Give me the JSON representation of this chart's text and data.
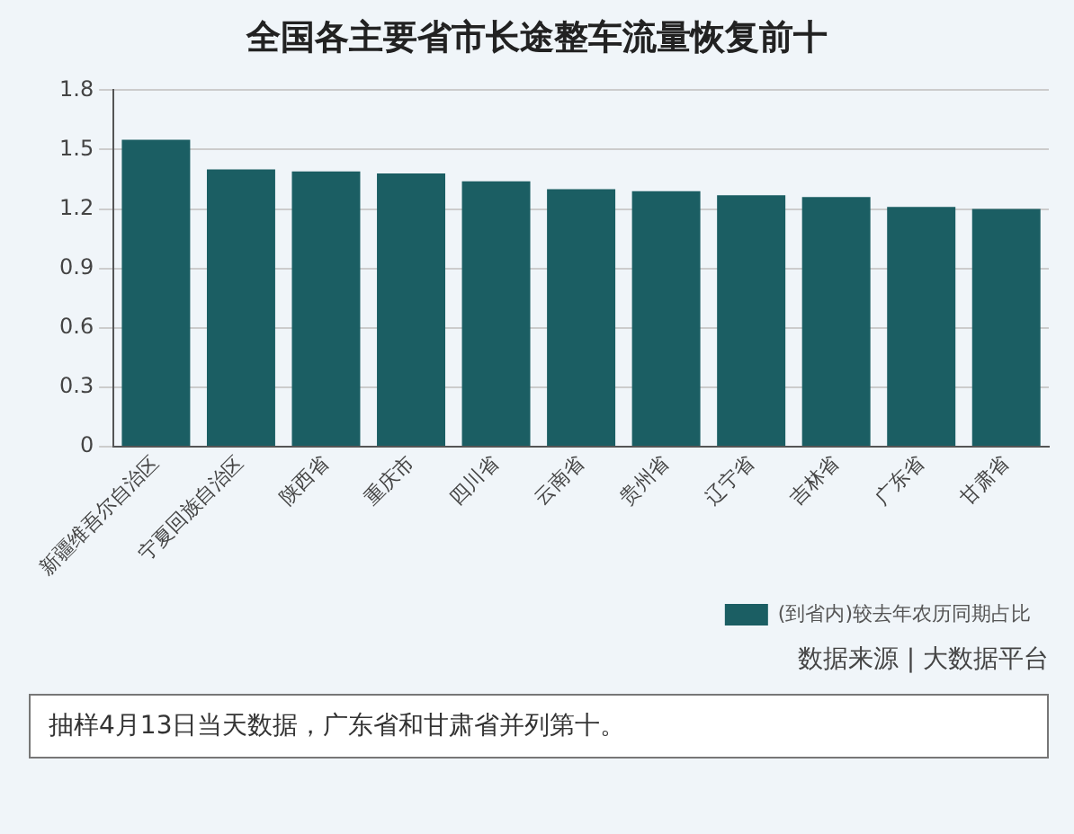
{
  "chart_data": {
    "type": "bar",
    "title": "全国各主要省市长途整车流量恢复前十",
    "categories": [
      "新疆维吾尔自治区",
      "宁夏回族自治区",
      "陕西省",
      "重庆市",
      "四川省",
      "云南省",
      "贵州省",
      "辽宁省",
      "吉林省",
      "广东省",
      "甘肃省"
    ],
    "series": [
      {
        "name": "(到省内)较去年农历同期占比",
        "color": "#1b5e63",
        "values": [
          1.55,
          1.4,
          1.39,
          1.38,
          1.34,
          1.3,
          1.29,
          1.27,
          1.26,
          1.21,
          1.2
        ]
      }
    ],
    "ylim": [
      0,
      1.8
    ],
    "yticks": [
      0,
      {
        "value": 0.3,
        "label": "0.3"
      },
      {
        "value": 0.6,
        "label": "0.6"
      },
      {
        "value": 0.9,
        "label": "0.9"
      },
      {
        "value": 1.2,
        "label": "1.2"
      },
      {
        "value": 1.5,
        "label": "1.5"
      },
      {
        "value": 1.8,
        "label": "1.8"
      }
    ],
    "grid": "y",
    "legend": "bottom right",
    "annotations": [
      "数据来源 | 大数据平台",
      "抽样4月13日当天数据，广东省和甘肃省并列第十。"
    ]
  }
}
